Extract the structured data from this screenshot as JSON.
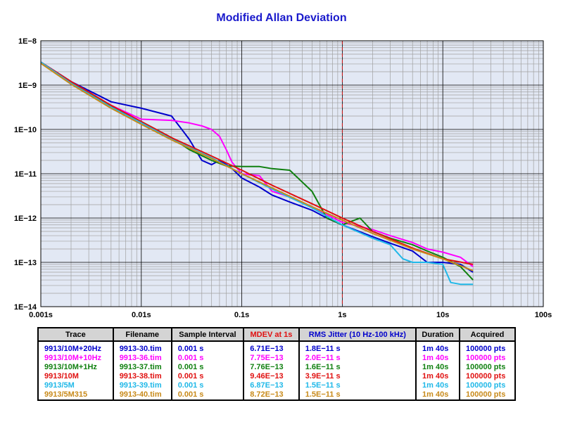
{
  "chart_data": {
    "type": "line",
    "title": "Modified Allan Deviation",
    "x_scale": "log",
    "y_scale": "log",
    "xlim": [
      0.001,
      100
    ],
    "ylim": [
      1e-14,
      1e-08
    ],
    "x_ticks": [
      "0.001s",
      "0.01s",
      "0.1s",
      "1s",
      "10s",
      "100s"
    ],
    "y_ticks": [
      "1E−14",
      "1E−13",
      "1E−12",
      "1E−11",
      "1E−10",
      "1E−9",
      "1E−8"
    ],
    "grid": true,
    "reference_line_x": 1,
    "series": [
      {
        "name": "9913/10M+20Hz",
        "color": "#0000cc",
        "x": [
          0.001,
          0.002,
          0.005,
          0.01,
          0.02,
          0.03,
          0.04,
          0.05,
          0.06,
          0.07,
          0.08,
          0.1,
          0.15,
          0.2,
          0.3,
          0.5,
          0.7,
          1,
          2,
          3,
          5,
          7,
          10,
          15,
          20
        ],
        "y": [
          3.3e-09,
          1.2e-09,
          4.2e-10,
          3e-10,
          2e-10,
          6e-11,
          2e-11,
          1.6e-11,
          2e-11,
          1.6e-11,
          1.3e-11,
          8e-12,
          5e-12,
          3.3e-12,
          2.3e-12,
          1.5e-12,
          1e-12,
          7e-13,
          3.8e-13,
          2.7e-13,
          1.8e-13,
          1e-13,
          1e-13,
          9e-14,
          6e-14
        ]
      },
      {
        "name": "9913/10M+10Hz",
        "color": "#ff00ff",
        "x": [
          0.001,
          0.002,
          0.005,
          0.01,
          0.02,
          0.03,
          0.04,
          0.05,
          0.06,
          0.07,
          0.08,
          0.1,
          0.15,
          0.2,
          0.3,
          0.5,
          0.7,
          1,
          2,
          3,
          5,
          7,
          10,
          15,
          20
        ],
        "y": [
          3.3e-09,
          1.15e-09,
          3.5e-10,
          1.7e-10,
          1.6e-10,
          1.4e-10,
          1.2e-10,
          1e-10,
          7e-11,
          3.5e-11,
          1.8e-11,
          1e-11,
          9e-12,
          4e-12,
          3e-12,
          1.8e-12,
          1.2e-12,
          8e-13,
          5.5e-13,
          4e-13,
          2.8e-13,
          2e-13,
          1.7e-13,
          1.3e-13,
          8e-14
        ]
      },
      {
        "name": "9913/10M+1Hz",
        "color": "#108010",
        "x": [
          0.001,
          0.002,
          0.005,
          0.01,
          0.02,
          0.03,
          0.05,
          0.07,
          0.1,
          0.15,
          0.2,
          0.3,
          0.5,
          0.7,
          1,
          1.5,
          2,
          3,
          5,
          7,
          10,
          15,
          20
        ],
        "y": [
          3.3e-09,
          1.15e-09,
          3.3e-10,
          1.5e-10,
          6.5e-11,
          3.5e-11,
          2e-11,
          1.5e-11,
          1.45e-11,
          1.45e-11,
          1.3e-11,
          1.2e-11,
          4e-12,
          1e-12,
          7e-13,
          1e-12,
          5e-13,
          3.5e-13,
          2.5e-13,
          1.8e-13,
          1.3e-13,
          8e-14,
          4e-14
        ]
      },
      {
        "name": "9913/10M",
        "color": "#e01010",
        "x": [
          0.001,
          0.002,
          0.005,
          0.01,
          0.02,
          0.05,
          0.1,
          0.2,
          0.5,
          1,
          2,
          5,
          10,
          20
        ],
        "y": [
          3.3e-09,
          1.2e-09,
          3.5e-10,
          1.5e-10,
          6.5e-11,
          2.5e-11,
          1.2e-11,
          5.5e-12,
          2.1e-12,
          1e-12,
          5e-13,
          2.1e-13,
          1.2e-13,
          9e-14
        ]
      },
      {
        "name": "9913/5M",
        "color": "#20b8e8",
        "x": [
          0.001,
          0.002,
          0.005,
          0.01,
          0.02,
          0.05,
          0.1,
          0.2,
          0.5,
          1,
          2,
          3,
          4,
          5,
          7,
          10,
          12,
          15,
          20
        ],
        "y": [
          3.3e-09,
          1.1e-09,
          3.2e-10,
          1.4e-10,
          6e-11,
          2.3e-11,
          1e-11,
          4.5e-12,
          1.7e-12,
          7e-13,
          3.5e-13,
          2.5e-13,
          1.2e-13,
          1e-13,
          1e-13,
          9e-14,
          3.5e-14,
          3.2e-14,
          3.2e-14
        ]
      },
      {
        "name": "9913/5M315",
        "color": "#c88a1a",
        "x": [
          0.001,
          0.002,
          0.005,
          0.01,
          0.02,
          0.05,
          0.1,
          0.2,
          0.5,
          1,
          2,
          5,
          10,
          20
        ],
        "y": [
          3.1e-09,
          1.05e-09,
          3e-10,
          1.3e-10,
          5.8e-11,
          2.2e-11,
          1e-11,
          4.8e-12,
          1.8e-12,
          9e-13,
          4.5e-13,
          2e-13,
          1.2e-13,
          6.5e-14
        ]
      }
    ]
  },
  "legend_table": {
    "headers": [
      "Trace",
      "Filename",
      "Sample Interval",
      "MDEV at 1s",
      "RMS Jitter (10 Hz-100 kHz)",
      "Duration",
      "Acquired"
    ],
    "mdev_header_color": "#e01010",
    "jitter_header_color": "#0000cc",
    "rows": [
      {
        "trace": "9913/10M+20Hz",
        "filename": "9913-30.tim",
        "interval": "0.001 s",
        "mdev": "6.71E−13",
        "jitter": "1.8E−11 s",
        "duration": "1m 40s",
        "acquired": "100000 pts",
        "color": "#0000cc"
      },
      {
        "trace": "9913/10M+10Hz",
        "filename": "9913-36.tim",
        "interval": "0.001 s",
        "mdev": "7.75E−13",
        "jitter": "2.0E−11 s",
        "duration": "1m 40s",
        "acquired": "100000 pts",
        "color": "#ff00ff"
      },
      {
        "trace": "9913/10M+1Hz",
        "filename": "9913-37.tim",
        "interval": "0.001 s",
        "mdev": "7.76E−13",
        "jitter": "1.6E−11 s",
        "duration": "1m 40s",
        "acquired": "100000 pts",
        "color": "#108010"
      },
      {
        "trace": "9913/10M",
        "filename": "9913-38.tim",
        "interval": "0.001 s",
        "mdev": "9.46E−13",
        "jitter": "3.9E−11 s",
        "duration": "1m 40s",
        "acquired": "100000 pts",
        "color": "#e01010"
      },
      {
        "trace": "9913/5M",
        "filename": "9913-39.tim",
        "interval": "0.001 s",
        "mdev": "6.87E−13",
        "jitter": "1.5E−11 s",
        "duration": "1m 40s",
        "acquired": "100000 pts",
        "color": "#20b8e8"
      },
      {
        "trace": "9913/5M315",
        "filename": "9913-40.tim",
        "interval": "0.001 s",
        "mdev": "8.72E−13",
        "jitter": "1.5E−11 s",
        "duration": "1m 40s",
        "acquired": "100000 pts",
        "color": "#c88a1a"
      }
    ]
  }
}
